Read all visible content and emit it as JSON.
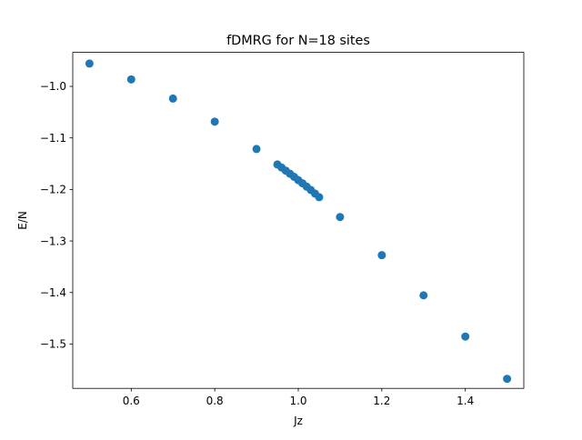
{
  "chart_data": {
    "type": "scatter",
    "title": "fDMRG for N=18 sites",
    "xlabel": "Jz",
    "ylabel": "E/N",
    "xlim": [
      0.46,
      1.54
    ],
    "ylim": [
      -1.586,
      -0.934
    ],
    "xticks": [
      0.6,
      0.8,
      1.0,
      1.2,
      1.4
    ],
    "xtick_labels": [
      "0.6",
      "0.8",
      "1.0",
      "1.2",
      "1.4"
    ],
    "yticks": [
      -1.0,
      -1.1,
      -1.2,
      -1.3,
      -1.4,
      -1.5
    ],
    "ytick_labels": [
      "−1.0",
      "−1.1",
      "−1.2",
      "−1.3",
      "−1.4",
      "−1.5"
    ],
    "grid": false,
    "marker_color": "#1f77b4",
    "x": [
      0.5,
      0.6,
      0.7,
      0.8,
      0.9,
      0.95,
      0.96,
      0.97,
      0.98,
      0.99,
      1.0,
      1.01,
      1.02,
      1.03,
      1.04,
      1.05,
      1.1,
      1.2,
      1.3,
      1.4,
      1.5
    ],
    "y": [
      -0.9557,
      -0.9865,
      -1.0236,
      -1.0685,
      -1.1215,
      -1.1515,
      -1.1575,
      -1.1635,
      -1.1695,
      -1.1755,
      -1.182,
      -1.188,
      -1.1945,
      -1.201,
      -1.208,
      -1.215,
      -1.2535,
      -1.3275,
      -1.4055,
      -1.4855,
      -1.5675
    ]
  }
}
